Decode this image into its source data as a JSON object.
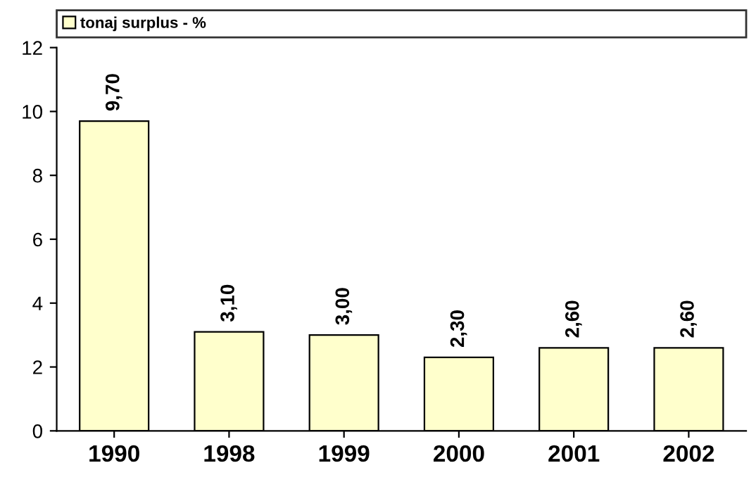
{
  "chart_data": {
    "type": "bar",
    "categories": [
      "1990",
      "1998",
      "1999",
      "2000",
      "2001",
      "2002"
    ],
    "series": [
      {
        "name": "tonaj surplus - %",
        "color": "#ffffcc",
        "values": [
          9.7,
          3.1,
          3.0,
          2.3,
          2.6,
          2.6
        ],
        "value_labels": [
          "9,70",
          "3,10",
          "3,00",
          "2,30",
          "2,60",
          "2,60"
        ]
      }
    ],
    "ylim": [
      0,
      12
    ],
    "yticks": [
      0,
      2,
      4,
      6,
      8,
      10,
      12
    ],
    "grid": false,
    "legend": "top"
  }
}
